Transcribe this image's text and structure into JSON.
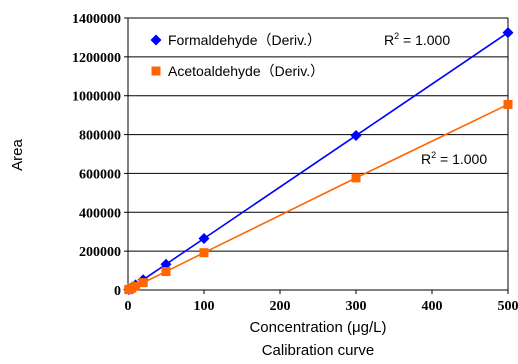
{
  "chart_data": {
    "type": "line",
    "xlabel": "Concentration (μg/L)",
    "ylabel": "Area",
    "caption": "Calibration curve",
    "xlim": [
      0,
      500
    ],
    "ylim": [
      0,
      1400000
    ],
    "x_ticks": [
      0,
      100,
      200,
      300,
      400,
      500
    ],
    "y_ticks": [
      0,
      200000,
      400000,
      600000,
      800000,
      1000000,
      1200000,
      1400000
    ],
    "legend_position": "top-left inside",
    "series": [
      {
        "name": "Formaldehyde（Deriv.）",
        "color": "#0000ff",
        "marker": "diamond",
        "x": [
          1,
          2,
          5,
          10,
          20,
          50,
          100,
          300,
          500
        ],
        "y": [
          2650,
          5300,
          13250,
          26500,
          53000,
          132500,
          265000,
          795000,
          1325000
        ],
        "annotation": "R = 1.000"
      },
      {
        "name": "Acetoaldehyde（Deriv.）",
        "color": "#ff6600",
        "marker": "square",
        "x": [
          1,
          2,
          5,
          10,
          20,
          50,
          100,
          300,
          500
        ],
        "y": [
          1900,
          3800,
          9500,
          19000,
          38000,
          95000,
          192000,
          577000,
          955000
        ],
        "annotation": "R = 1.000"
      }
    ],
    "annotation_superscript": "2",
    "grid": "horizontal gridlines"
  }
}
